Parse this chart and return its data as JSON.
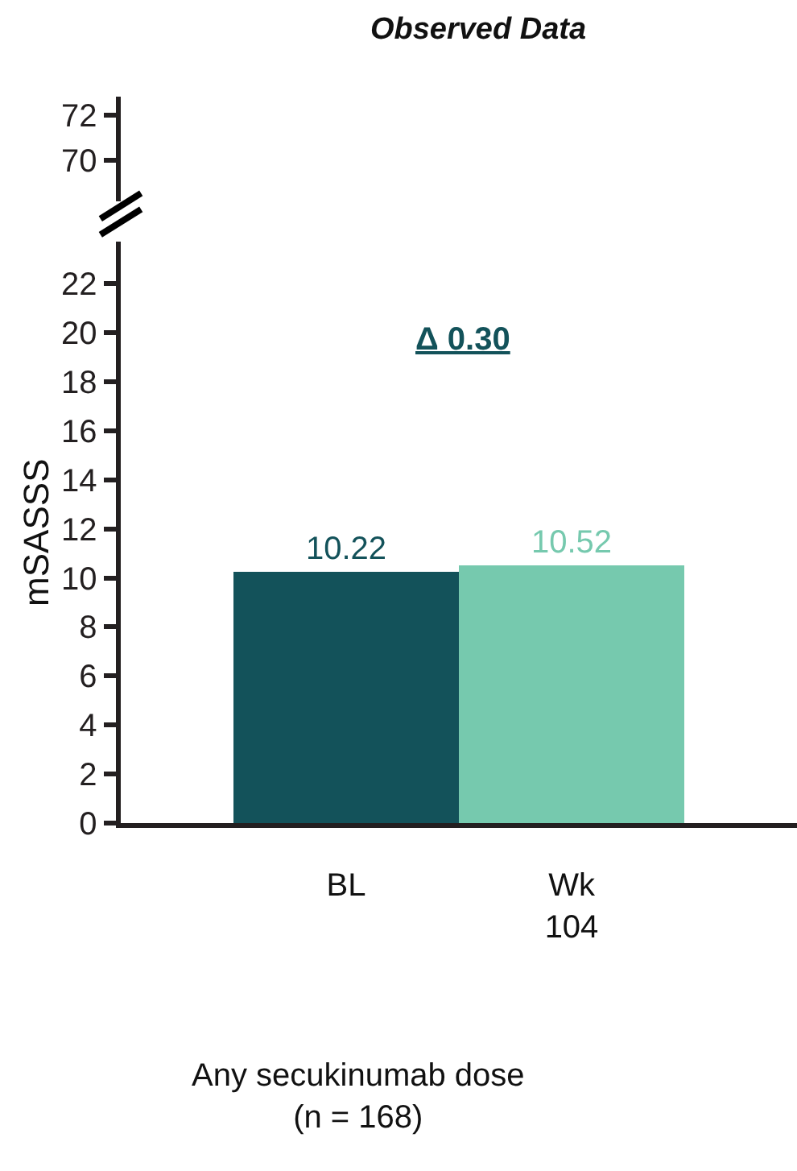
{
  "chart_data": [
    {
      "type": "other",
      "title": "Observed Data",
      "annotations": [
        "72",
        "70"
      ]
    },
    {
      "type": "bar",
      "ylabel": "mSASSS",
      "categories": [
        "BL",
        "Wk\n104"
      ],
      "values": [
        10.22,
        10.52
      ],
      "colors": [
        "#13525a",
        "#76c9ae"
      ],
      "ylim": [
        0,
        23.7
      ],
      "yticks": [
        0,
        2,
        4,
        6,
        8,
        10,
        12,
        14,
        16,
        18,
        20,
        22
      ],
      "data_labels": true,
      "annotations": [
        "Δ 0.30",
        "Any secukinumab dose\n(n = 168)"
      ]
    }
  ]
}
